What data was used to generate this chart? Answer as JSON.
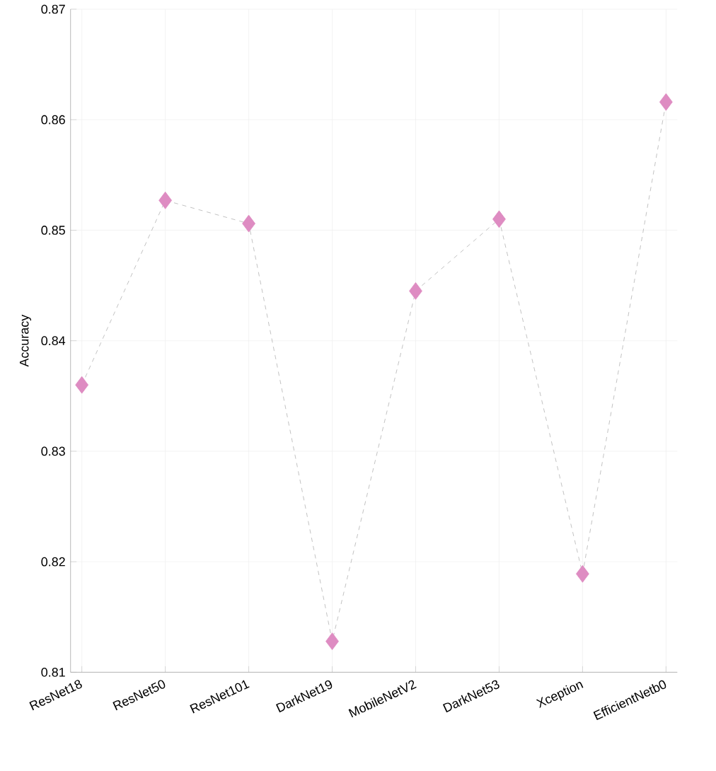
{
  "chart_data": {
    "type": "line",
    "ylabel": "Accuracy",
    "categories": [
      "ResNet18",
      "ResNet50",
      "ResNet101",
      "DarkNet19",
      "MobileNetV2",
      "DarkNet53",
      "Xception",
      "EfficientNetb0"
    ],
    "series": [
      {
        "color": "#de8cc2",
        "values": [
          0.836,
          0.8527,
          0.8506,
          0.8128,
          0.8445,
          0.851,
          0.8189,
          0.8616
        ]
      }
    ],
    "ylim": [
      0.81,
      0.87
    ],
    "yticks": [
      0.81,
      0.82,
      0.83,
      0.84,
      0.85,
      0.86,
      0.87
    ],
    "grid": true,
    "marker": "diamond",
    "line_style": "dashed"
  }
}
